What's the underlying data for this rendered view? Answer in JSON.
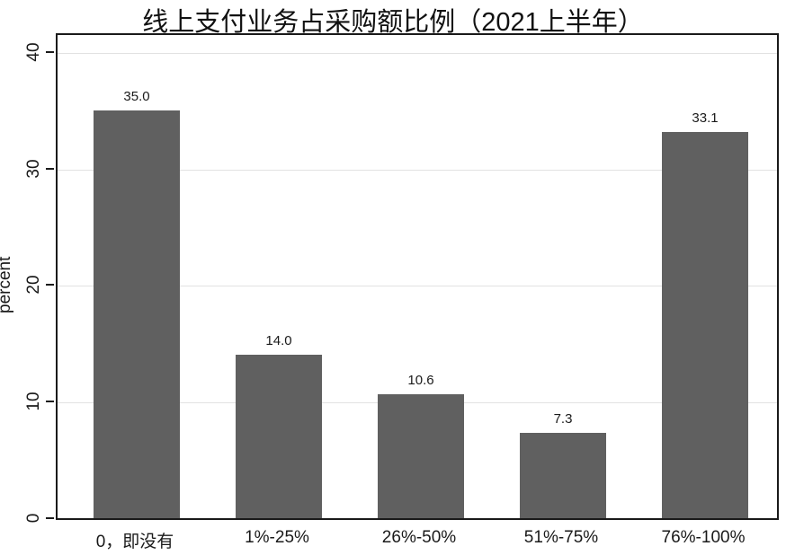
{
  "title": "线上支付业务占采购额比例（2021上半年）",
  "chart_data": {
    "type": "bar",
    "title": "线上支付业务占采购额比例（2021上半年）",
    "categories": [
      "0，即没有",
      "1%-25%",
      "26%-50%",
      "51%-75%",
      "76%-100%"
    ],
    "values": [
      35.0,
      14.0,
      10.6,
      7.3,
      33.1
    ],
    "value_labels": [
      "35.0",
      "14.0",
      "10.6",
      "7.3",
      "33.1"
    ],
    "xlabel": "",
    "ylabel": "percent",
    "yticks": [
      0,
      10,
      20,
      30,
      40
    ],
    "ylim": [
      0,
      41.6
    ],
    "grid": true,
    "legend": false,
    "bar_color": "#606060",
    "gridline_color": "#e2e2e2",
    "axis_color": "#1a1a1a",
    "background_color": "#ffffff"
  }
}
